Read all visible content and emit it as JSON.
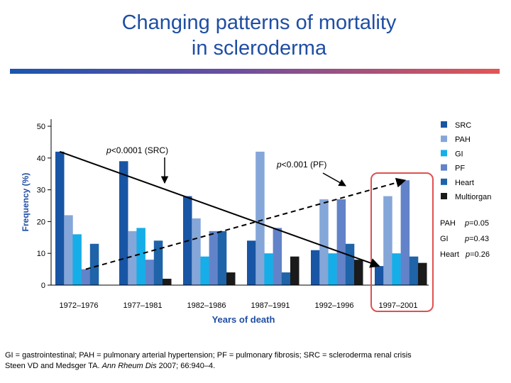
{
  "slide": {
    "title_line1": "Changing patterns of mortality",
    "title_line2": "in scleroderma",
    "footnote": "GI = gastrointestinal; PAH = pulmonary arterial hypertension; PF = pulmonary fibrosis; SRC = scleroderma renal crisis",
    "citation_prefix": "Steen VD and Medsger TA. ",
    "citation_journal": "Ann Rheum Dis",
    "citation_suffix": " 2007; 66:940–4."
  },
  "chart_data": {
    "type": "bar",
    "title": "",
    "xlabel": "Years of death",
    "ylabel": "Frequency (%)",
    "ylim": [
      0,
      50
    ],
    "yticks": [
      0,
      10,
      20,
      30,
      40,
      50
    ],
    "categories": [
      "1972–1976",
      "1977–1981",
      "1982–1986",
      "1987–1991",
      "1992–1996",
      "1997–2001"
    ],
    "series": [
      {
        "name": "SRC",
        "color": "#1855a5",
        "values": [
          42,
          39,
          28,
          14,
          11,
          6
        ]
      },
      {
        "name": "PAH",
        "color": "#85a6d8",
        "values": [
          22,
          17,
          21,
          42,
          27,
          28
        ]
      },
      {
        "name": "GI",
        "color": "#15aee8",
        "values": [
          16,
          18,
          9,
          10,
          10,
          10
        ]
      },
      {
        "name": "PF",
        "color": "#6283c9",
        "values": [
          5,
          8,
          17,
          18,
          27,
          33
        ]
      },
      {
        "name": "Heart",
        "color": "#1f63a8",
        "values": [
          13,
          14,
          17,
          4,
          13,
          9
        ]
      },
      {
        "name": "Multiorgan",
        "color": "#1a1a1a",
        "values": [
          0,
          2,
          4,
          9,
          8,
          7
        ]
      }
    ],
    "legend_position": "right",
    "pvalues": [
      {
        "label": "PAH",
        "italic": "p",
        "value": "=0.05"
      },
      {
        "label": "GI",
        "italic": "p",
        "value": "=0.43"
      },
      {
        "label": "Heart",
        "italic": "p",
        "value": "=0.26"
      }
    ],
    "annotations": {
      "src_italic": "p",
      "src_text": "<0.0001 (SRC)",
      "pf_italic": "p",
      "pf_text": "<0.001 (PF)"
    },
    "highlighted_category": "1997–2001",
    "trend_lines": [
      "SRC decreasing (solid)",
      "PF increasing (dashed)"
    ]
  }
}
